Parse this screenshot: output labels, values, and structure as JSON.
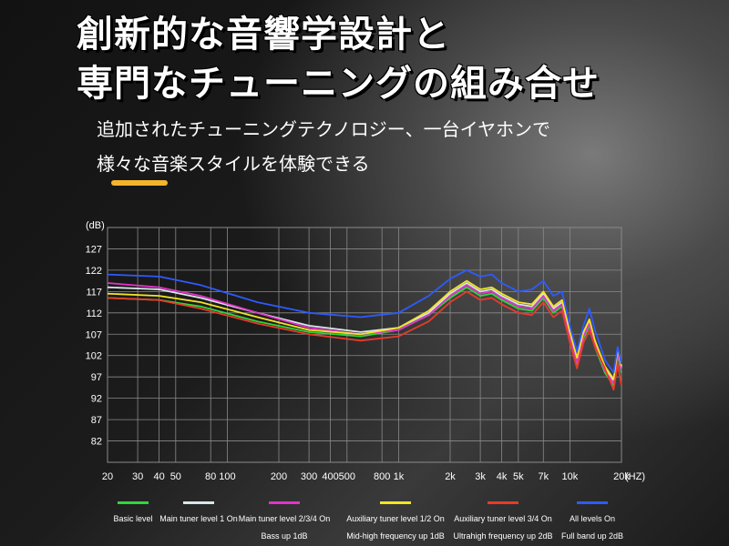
{
  "headline": {
    "line1": "創新的な音響学設計と",
    "line2": "専門なチューニングの組み合せ"
  },
  "subtext": {
    "line1": "追加されたチューニングテクノロジー、一台イヤホンで",
    "line2": "様々な音楽スタイルを体験できる"
  },
  "colors": {
    "accent_bar": "#f5b52a",
    "grid": "#8a8a8a"
  },
  "chart_data": {
    "type": "line",
    "ylabel": "(dB)",
    "xlabel": "(HZ)",
    "x_scale": "log",
    "xlim": [
      20,
      20000
    ],
    "ylim": [
      77,
      132
    ],
    "grid": true,
    "legend_position": "bottom",
    "y_ticks": [
      127,
      122,
      117,
      112,
      107,
      102,
      97,
      92,
      87,
      82
    ],
    "x_ticks": [
      {
        "value": 20,
        "label": "20"
      },
      {
        "value": 30,
        "label": "30"
      },
      {
        "value": 40,
        "label": "40"
      },
      {
        "value": 50,
        "label": "50"
      },
      {
        "value": 80,
        "label": "80"
      },
      {
        "value": 100,
        "label": "100"
      },
      {
        "value": 200,
        "label": "200"
      },
      {
        "value": 300,
        "label": "300"
      },
      {
        "value": 400,
        "label": "400"
      },
      {
        "value": 500,
        "label": "500"
      },
      {
        "value": 800,
        "label": "800"
      },
      {
        "value": 1000,
        "label": "1k"
      },
      {
        "value": 2000,
        "label": "2k"
      },
      {
        "value": 3000,
        "label": "3k"
      },
      {
        "value": 4000,
        "label": "4k"
      },
      {
        "value": 5000,
        "label": "5k"
      },
      {
        "value": 7000,
        "label": "7k"
      },
      {
        "value": 10000,
        "label": "10k"
      },
      {
        "value": 20000,
        "label": "20k"
      }
    ],
    "series": [
      {
        "name": "Basic level",
        "color": "#2fd63a",
        "points": [
          [
            20,
            115.5
          ],
          [
            40,
            115
          ],
          [
            70,
            113.5
          ],
          [
            150,
            110
          ],
          [
            300,
            107.5
          ],
          [
            600,
            106.5
          ],
          [
            1000,
            108
          ],
          [
            1500,
            111.5
          ],
          [
            2000,
            115.5
          ],
          [
            2500,
            118
          ],
          [
            3000,
            116
          ],
          [
            3500,
            116.5
          ],
          [
            4000,
            115
          ],
          [
            5000,
            113
          ],
          [
            6000,
            112.5
          ],
          [
            7000,
            115.5
          ],
          [
            8000,
            112
          ],
          [
            9000,
            113.5
          ],
          [
            10000,
            106
          ],
          [
            11000,
            100
          ],
          [
            12000,
            106
          ],
          [
            13000,
            109
          ],
          [
            14000,
            104
          ],
          [
            16000,
            98
          ],
          [
            18000,
            95
          ],
          [
            19000,
            102
          ],
          [
            20000,
            98
          ]
        ]
      },
      {
        "name": "Main tuner level 1 On",
        "color": "#d8e6e8",
        "points": [
          [
            20,
            118
          ],
          [
            40,
            117.5
          ],
          [
            70,
            115.5
          ],
          [
            150,
            112
          ],
          [
            300,
            109
          ],
          [
            600,
            107.5
          ],
          [
            1000,
            108.5
          ],
          [
            1500,
            112
          ],
          [
            2000,
            116.5
          ],
          [
            2500,
            119
          ],
          [
            3000,
            117
          ],
          [
            3500,
            117.5
          ],
          [
            4000,
            116
          ],
          [
            5000,
            114
          ],
          [
            6000,
            113.5
          ],
          [
            7000,
            116.5
          ],
          [
            8000,
            113
          ],
          [
            9000,
            114.5
          ],
          [
            10000,
            107
          ],
          [
            11000,
            101
          ],
          [
            12000,
            107
          ],
          [
            13000,
            110
          ],
          [
            14000,
            105
          ],
          [
            16000,
            99
          ],
          [
            18000,
            96
          ],
          [
            19000,
            103
          ],
          [
            20000,
            99
          ]
        ]
      },
      {
        "name": "Main tuner level 2/3/4 On\nBass up 1dB",
        "color": "#e233c9",
        "points": [
          [
            20,
            119
          ],
          [
            40,
            118
          ],
          [
            70,
            116
          ],
          [
            150,
            112
          ],
          [
            300,
            108.5
          ],
          [
            600,
            107
          ],
          [
            1000,
            108
          ],
          [
            1500,
            111.5
          ],
          [
            2000,
            116
          ],
          [
            2500,
            118.5
          ],
          [
            3000,
            116.5
          ],
          [
            3500,
            117
          ],
          [
            4000,
            115.5
          ],
          [
            5000,
            113.5
          ],
          [
            6000,
            113
          ],
          [
            7000,
            116
          ],
          [
            8000,
            112.5
          ],
          [
            9000,
            114
          ],
          [
            10000,
            106.5
          ],
          [
            11000,
            100.5
          ],
          [
            12000,
            106.5
          ],
          [
            13000,
            109.5
          ],
          [
            14000,
            104.5
          ],
          [
            16000,
            98.5
          ],
          [
            18000,
            95.5
          ],
          [
            19000,
            102.5
          ],
          [
            20000,
            98.5
          ]
        ]
      },
      {
        "name": "Auxiliary tuner level 1/2 On\nMid-high frequency up 1dB",
        "color": "#f2e526",
        "points": [
          [
            20,
            116.5
          ],
          [
            40,
            116
          ],
          [
            70,
            114.5
          ],
          [
            150,
            111
          ],
          [
            300,
            108
          ],
          [
            600,
            107
          ],
          [
            1000,
            108.5
          ],
          [
            1500,
            112.5
          ],
          [
            2000,
            117
          ],
          [
            2500,
            119.5
          ],
          [
            3000,
            117.5
          ],
          [
            3500,
            118
          ],
          [
            4000,
            116.5
          ],
          [
            5000,
            114.5
          ],
          [
            6000,
            114
          ],
          [
            7000,
            117
          ],
          [
            8000,
            113.5
          ],
          [
            9000,
            115
          ],
          [
            10000,
            107.5
          ],
          [
            11000,
            101.5
          ],
          [
            12000,
            107.5
          ],
          [
            13000,
            110.5
          ],
          [
            14000,
            105.5
          ],
          [
            16000,
            99.5
          ],
          [
            18000,
            96.5
          ],
          [
            19000,
            103.5
          ],
          [
            20000,
            99.5
          ]
        ]
      },
      {
        "name": "Auxiliary tuner level 3/4 On\nUltrahigh frequency up 2dB",
        "color": "#e83a2a",
        "points": [
          [
            20,
            115.5
          ],
          [
            40,
            115
          ],
          [
            70,
            113
          ],
          [
            150,
            109.5
          ],
          [
            300,
            107
          ],
          [
            600,
            105.5
          ],
          [
            1000,
            106.5
          ],
          [
            1500,
            110
          ],
          [
            2000,
            114.5
          ],
          [
            2500,
            117
          ],
          [
            3000,
            115
          ],
          [
            3500,
            115.5
          ],
          [
            4000,
            114
          ],
          [
            5000,
            112
          ],
          [
            6000,
            111.5
          ],
          [
            7000,
            114.5
          ],
          [
            8000,
            111
          ],
          [
            9000,
            112.5
          ],
          [
            10000,
            105
          ],
          [
            11000,
            99
          ],
          [
            12000,
            105
          ],
          [
            13000,
            108
          ],
          [
            14000,
            104
          ],
          [
            16000,
            99
          ],
          [
            18000,
            94
          ],
          [
            19000,
            100
          ],
          [
            20000,
            95
          ]
        ]
      },
      {
        "name": "All levels On\nFull band up 2dB",
        "color": "#2d5bff",
        "points": [
          [
            20,
            121
          ],
          [
            40,
            120.5
          ],
          [
            70,
            118.5
          ],
          [
            150,
            114.5
          ],
          [
            300,
            112
          ],
          [
            600,
            111
          ],
          [
            1000,
            112
          ],
          [
            1500,
            116
          ],
          [
            2000,
            120
          ],
          [
            2500,
            122
          ],
          [
            3000,
            120.5
          ],
          [
            3500,
            121
          ],
          [
            4000,
            119
          ],
          [
            5000,
            117
          ],
          [
            6000,
            117.5
          ],
          [
            7000,
            119.5
          ],
          [
            8000,
            116
          ],
          [
            9000,
            117
          ],
          [
            10000,
            109
          ],
          [
            11000,
            103
          ],
          [
            12000,
            109
          ],
          [
            13000,
            113
          ],
          [
            14000,
            108
          ],
          [
            16000,
            101
          ],
          [
            18000,
            98
          ],
          [
            19000,
            104
          ],
          [
            20000,
            100
          ]
        ]
      }
    ]
  }
}
